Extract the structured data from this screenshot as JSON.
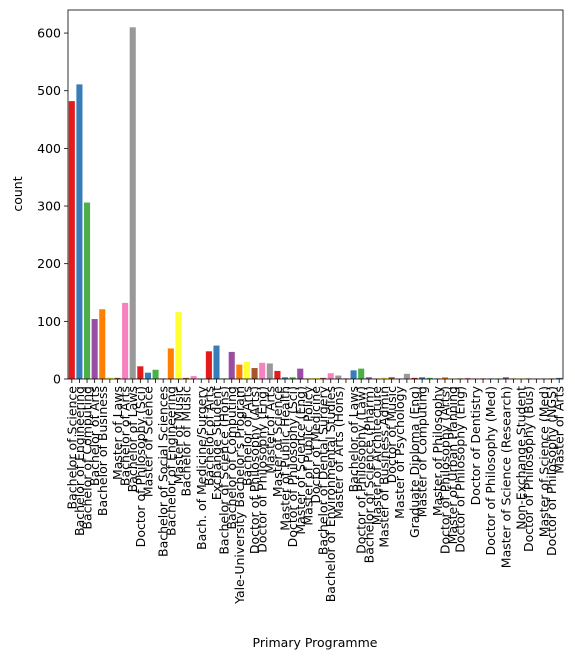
{
  "chart_data": {
    "type": "bar",
    "xlabel": "Primary Programme",
    "ylabel": "count",
    "ylim": [
      0,
      640
    ],
    "yticks": [
      0,
      100,
      200,
      300,
      400,
      500,
      600
    ],
    "grid": false,
    "legend": "none",
    "palette": [
      "#e41a1c",
      "#377eb8",
      "#4daf4a",
      "#984ea3",
      "#ff7f00",
      "#ffff33",
      "#a65628",
      "#f781bf",
      "#999999"
    ],
    "categories": [
      "Bachelor of Science",
      "Bachelor of Engineering",
      "Bachelor of Computing",
      "Bachelor of Arts",
      "Bachelor of Business",
      "",
      "Master of Laws",
      "Bachelor of Arts",
      "Bachelor of Laws",
      "Doctor of Philosophy (Sci)",
      "Master of Science",
      "",
      "Bachelor of Social Sciences",
      "Bachelor of Engineering",
      "Master of Music",
      "Bachelor of Music",
      "",
      "Bach. of Medicine/Surgery",
      "Bachelor of Arts",
      "Exchange Student",
      "Bachelor of Science (Hons)",
      "Bachelor of Computing",
      "Yale-University Bachelor's Program",
      "Bachelor of Arts",
      "Doctor of Philosophy (Arts)",
      "Doctor of Philosophy (Eng)",
      "Master of Arts",
      "Master of Science",
      "Master of Public Health",
      "Doctor of Philosophy (Sci)",
      "Master of Science (Eng)",
      "Master of Public Policy",
      "Doctor of Medicine",
      "Bachelor of Dental Surgery",
      "Bachelor of Environmental Studies",
      "Master of Arts (Hons)",
      "",
      "Bachelor of Laws",
      "Doctor of Philosophy (Law)",
      "Bachelor of Science (Pharm)",
      "Master of Architecture",
      "Master of Business Admin",
      "Doctor of Music",
      "Master of Psychology",
      "",
      "Graduate Diploma (Eng)",
      "Master of Computing",
      "",
      "Master of Philosophy",
      "Doctor of Philosophy (Arts)",
      "Master of Urban Planning",
      "Doctor of Philosophy (Eng)",
      "",
      "Doctor of Dentistry",
      "",
      "Doctor of Philosophy (Med)",
      "",
      "Master of Science (Research)",
      "",
      "Non-Exchange Student",
      "Doctor of Philosophy (Bus)",
      "",
      "Master of Science (Med)",
      "Doctor of Philosophy (NGS)",
      "Master of Arts"
    ],
    "values": [
      482,
      511,
      306,
      104,
      121,
      3,
      2,
      132,
      610,
      22,
      11,
      16,
      1,
      53,
      116,
      2,
      5,
      1,
      48,
      58,
      1,
      47,
      25,
      30,
      19,
      28,
      27,
      14,
      3,
      3,
      18,
      1,
      2,
      2,
      10,
      6,
      1,
      15,
      18,
      3,
      1,
      3,
      3,
      1,
      9,
      2,
      3,
      2,
      1,
      3,
      1,
      1,
      2,
      1,
      1,
      1,
      1,
      3,
      1,
      1,
      1,
      1,
      1,
      1,
      2
    ]
  }
}
